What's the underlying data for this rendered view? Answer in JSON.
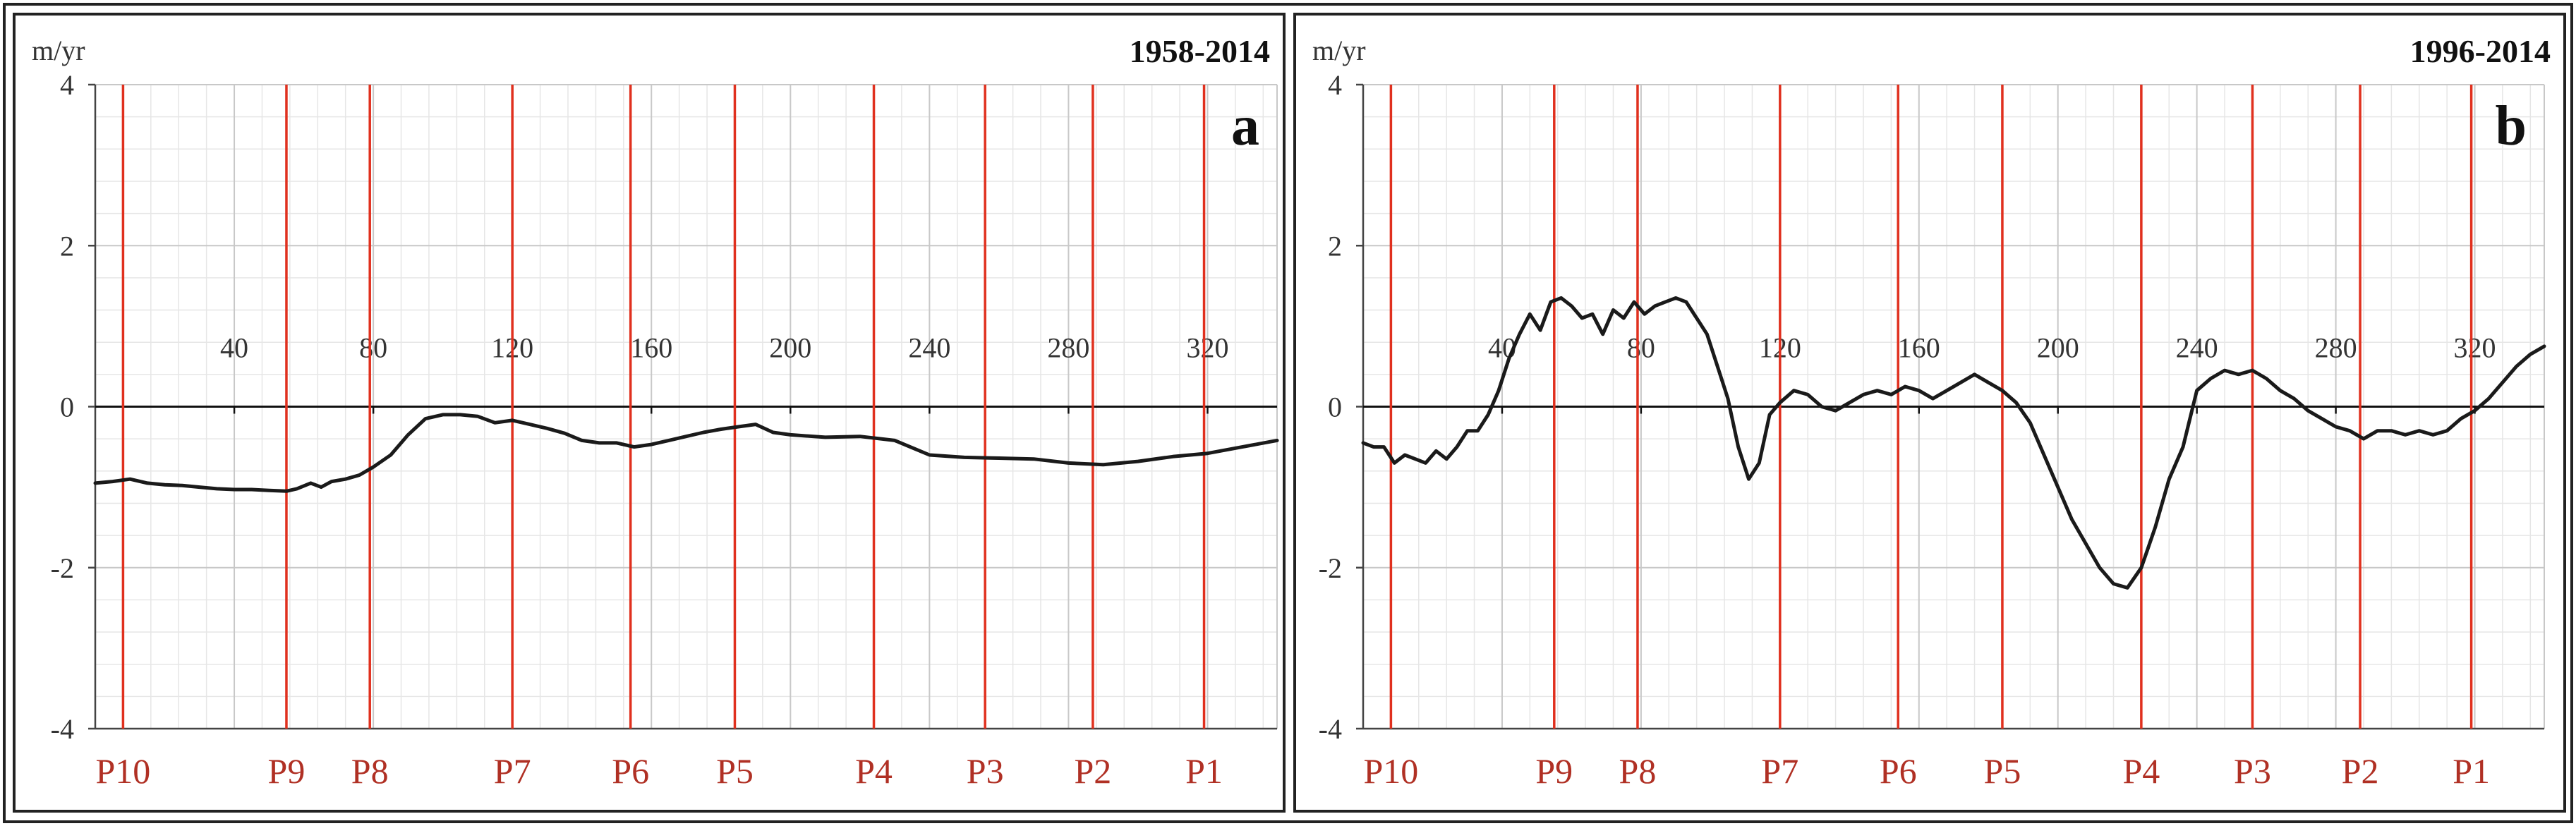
{
  "chart_data": [
    {
      "id": "a",
      "type": "line",
      "title": "1958-2014",
      "panel_letter": "a",
      "ylabel": "m/yr",
      "xlim": [
        0,
        340
      ],
      "ylim": [
        -4,
        4
      ],
      "x_ticks": [
        40,
        80,
        120,
        160,
        200,
        240,
        280,
        320
      ],
      "y_ticks": [
        -4,
        -2,
        0,
        2,
        4
      ],
      "grid": true,
      "profiles": [
        {
          "label": "P10",
          "x": 8
        },
        {
          "label": "P9",
          "x": 55
        },
        {
          "label": "P8",
          "x": 79
        },
        {
          "label": "P7",
          "x": 120
        },
        {
          "label": "P6",
          "x": 154
        },
        {
          "label": "P5",
          "x": 184
        },
        {
          "label": "P4",
          "x": 224
        },
        {
          "label": "P3",
          "x": 256
        },
        {
          "label": "P2",
          "x": 287
        },
        {
          "label": "P1",
          "x": 319
        }
      ],
      "series": [
        {
          "x": [
            0,
            5,
            10,
            15,
            20,
            25,
            30,
            35,
            40,
            45,
            50,
            55,
            58,
            62,
            65,
            68,
            72,
            76,
            80,
            85,
            90,
            95,
            100,
            105,
            110,
            115,
            120,
            125,
            130,
            135,
            140,
            145,
            150,
            155,
            160,
            165,
            170,
            175,
            180,
            185,
            190,
            195,
            200,
            210,
            220,
            230,
            240,
            250,
            260,
            270,
            280,
            290,
            300,
            310,
            320,
            330,
            340
          ],
          "y": [
            -0.95,
            -0.93,
            -0.9,
            -0.95,
            -0.97,
            -0.98,
            -1.0,
            -1.02,
            -1.03,
            -1.03,
            -1.04,
            -1.05,
            -1.02,
            -0.95,
            -1.0,
            -0.93,
            -0.9,
            -0.85,
            -0.75,
            -0.6,
            -0.35,
            -0.15,
            -0.1,
            -0.1,
            -0.12,
            -0.2,
            -0.17,
            -0.22,
            -0.27,
            -0.33,
            -0.42,
            -0.45,
            -0.45,
            -0.5,
            -0.47,
            -0.42,
            -0.37,
            -0.32,
            -0.28,
            -0.25,
            -0.22,
            -0.32,
            -0.35,
            -0.38,
            -0.37,
            -0.42,
            -0.6,
            -0.63,
            -0.64,
            -0.65,
            -0.7,
            -0.72,
            -0.68,
            -0.62,
            -0.58,
            -0.5,
            -0.42
          ]
        }
      ]
    },
    {
      "id": "b",
      "type": "line",
      "title": "1996-2014",
      "panel_letter": "b",
      "ylabel": "m/yr",
      "xlim": [
        0,
        340
      ],
      "ylim": [
        -4,
        4
      ],
      "x_ticks": [
        40,
        80,
        120,
        160,
        200,
        240,
        280,
        320
      ],
      "y_ticks": [
        -4,
        -2,
        0,
        2,
        4
      ],
      "grid": true,
      "profiles": [
        {
          "label": "P10",
          "x": 8
        },
        {
          "label": "P9",
          "x": 55
        },
        {
          "label": "P8",
          "x": 79
        },
        {
          "label": "P7",
          "x": 120
        },
        {
          "label": "P6",
          "x": 154
        },
        {
          "label": "P5",
          "x": 184
        },
        {
          "label": "P4",
          "x": 224
        },
        {
          "label": "P3",
          "x": 256
        },
        {
          "label": "P2",
          "x": 287
        },
        {
          "label": "P1",
          "x": 319
        }
      ],
      "series": [
        {
          "x": [
            0,
            3,
            6,
            9,
            12,
            15,
            18,
            21,
            24,
            27,
            30,
            33,
            36,
            39,
            42,
            45,
            48,
            51,
            54,
            57,
            60,
            63,
            66,
            69,
            72,
            75,
            78,
            81,
            84,
            87,
            90,
            93,
            96,
            99,
            102,
            105,
            108,
            111,
            114,
            117,
            120,
            124,
            128,
            132,
            136,
            140,
            144,
            148,
            152,
            156,
            160,
            164,
            168,
            172,
            176,
            180,
            184,
            188,
            192,
            196,
            200,
            204,
            208,
            212,
            216,
            220,
            224,
            228,
            232,
            236,
            240,
            244,
            248,
            252,
            256,
            260,
            264,
            268,
            272,
            276,
            280,
            284,
            288,
            292,
            296,
            300,
            304,
            308,
            312,
            316,
            320,
            324,
            328,
            332,
            336,
            340
          ],
          "y": [
            -0.45,
            -0.5,
            -0.5,
            -0.7,
            -0.6,
            -0.65,
            -0.7,
            -0.55,
            -0.65,
            -0.5,
            -0.3,
            -0.3,
            -0.1,
            0.2,
            0.6,
            0.9,
            1.15,
            0.95,
            1.3,
            1.35,
            1.25,
            1.1,
            1.15,
            0.9,
            1.2,
            1.1,
            1.3,
            1.15,
            1.25,
            1.3,
            1.35,
            1.3,
            1.1,
            0.9,
            0.5,
            0.1,
            -0.5,
            -0.9,
            -0.7,
            -0.1,
            0.05,
            0.2,
            0.15,
            0.0,
            -0.05,
            0.05,
            0.15,
            0.2,
            0.15,
            0.25,
            0.2,
            0.1,
            0.2,
            0.3,
            0.4,
            0.3,
            0.2,
            0.05,
            -0.2,
            -0.6,
            -1.0,
            -1.4,
            -1.7,
            -2.0,
            -2.2,
            -2.25,
            -2.0,
            -1.5,
            -0.9,
            -0.5,
            0.2,
            0.35,
            0.45,
            0.4,
            0.45,
            0.35,
            0.2,
            0.1,
            -0.05,
            -0.15,
            -0.25,
            -0.3,
            -0.4,
            -0.3,
            -0.3,
            -0.35,
            -0.3,
            -0.35,
            -0.3,
            -0.15,
            -0.05,
            0.1,
            0.3,
            0.5,
            0.65,
            0.75
          ]
        }
      ]
    }
  ]
}
